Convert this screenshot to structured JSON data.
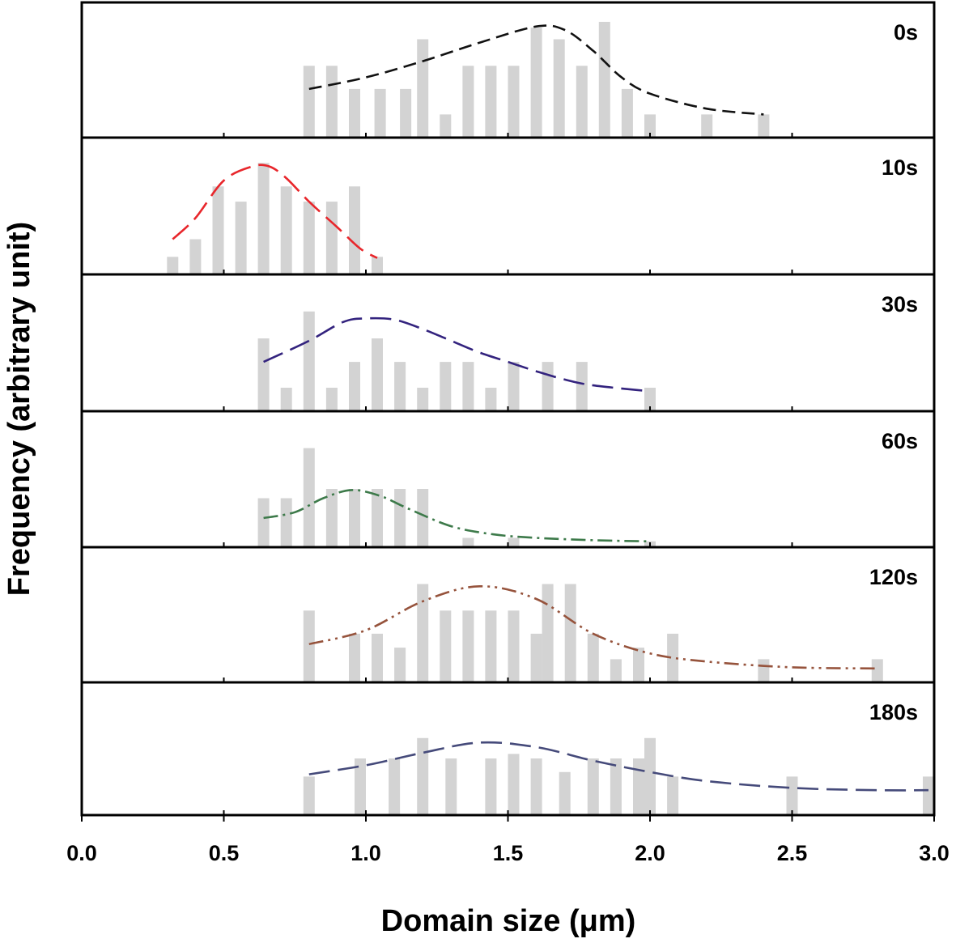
{
  "chart_data": {
    "type": "bar",
    "xlabel": "Domain size (μm)",
    "ylabel": "Frequency (arbitrary unit)",
    "xlim": [
      0.0,
      3.0
    ],
    "x_ticks": [
      "0.0",
      "0.5",
      "1.0",
      "1.5",
      "2.0",
      "2.5",
      "3.0"
    ],
    "bar_color": "#d3d3d3",
    "panels": [
      {
        "label": "0s",
        "ylim": [
          0,
          1
        ],
        "curve_color": "#111111",
        "curve_dash": "dash",
        "bars": [
          {
            "x": 0.8,
            "value": 0.62
          },
          {
            "x": 0.88,
            "value": 0.62
          },
          {
            "x": 0.96,
            "value": 0.42
          },
          {
            "x": 1.05,
            "value": 0.42
          },
          {
            "x": 1.14,
            "value": 0.42
          },
          {
            "x": 1.2,
            "value": 0.85
          },
          {
            "x": 1.28,
            "value": 0.2
          },
          {
            "x": 1.36,
            "value": 0.62
          },
          {
            "x": 1.44,
            "value": 0.62
          },
          {
            "x": 1.52,
            "value": 0.62
          },
          {
            "x": 1.6,
            "value": 0.95
          },
          {
            "x": 1.68,
            "value": 0.85
          },
          {
            "x": 1.76,
            "value": 0.62
          },
          {
            "x": 1.84,
            "value": 1.0
          },
          {
            "x": 1.92,
            "value": 0.42
          },
          {
            "x": 2.0,
            "value": 0.2
          },
          {
            "x": 2.2,
            "value": 0.2
          },
          {
            "x": 2.4,
            "value": 0.2
          }
        ],
        "curve": [
          [
            0.8,
            0.42
          ],
          [
            1.0,
            0.52
          ],
          [
            1.2,
            0.66
          ],
          [
            1.4,
            0.82
          ],
          [
            1.6,
            0.96
          ],
          [
            1.7,
            0.93
          ],
          [
            1.8,
            0.75
          ],
          [
            1.9,
            0.52
          ],
          [
            2.0,
            0.38
          ],
          [
            2.2,
            0.25
          ],
          [
            2.4,
            0.2
          ]
        ]
      },
      {
        "label": "10s",
        "ylim": [
          0,
          1
        ],
        "curve_color": "#e8262b",
        "curve_dash": "longdash",
        "bars": [
          {
            "x": 0.32,
            "value": 0.15
          },
          {
            "x": 0.4,
            "value": 0.3
          },
          {
            "x": 0.48,
            "value": 0.75
          },
          {
            "x": 0.56,
            "value": 0.62
          },
          {
            "x": 0.64,
            "value": 0.95
          },
          {
            "x": 0.72,
            "value": 0.75
          },
          {
            "x": 0.8,
            "value": 0.62
          },
          {
            "x": 0.88,
            "value": 0.62
          },
          {
            "x": 0.96,
            "value": 0.75
          },
          {
            "x": 1.04,
            "value": 0.15
          }
        ],
        "curve": [
          [
            0.32,
            0.3
          ],
          [
            0.4,
            0.48
          ],
          [
            0.5,
            0.8
          ],
          [
            0.6,
            0.92
          ],
          [
            0.66,
            0.92
          ],
          [
            0.72,
            0.82
          ],
          [
            0.8,
            0.62
          ],
          [
            0.9,
            0.4
          ],
          [
            0.98,
            0.22
          ],
          [
            1.04,
            0.14
          ]
        ]
      },
      {
        "label": "30s",
        "ylim": [
          0,
          1
        ],
        "curve_color": "#33237e",
        "curve_dash": "longdash",
        "bars": [
          {
            "x": 0.64,
            "value": 0.62
          },
          {
            "x": 0.72,
            "value": 0.2
          },
          {
            "x": 0.8,
            "value": 0.85
          },
          {
            "x": 0.88,
            "value": 0.2
          },
          {
            "x": 0.96,
            "value": 0.42
          },
          {
            "x": 1.04,
            "value": 0.62
          },
          {
            "x": 1.12,
            "value": 0.42
          },
          {
            "x": 1.2,
            "value": 0.2
          },
          {
            "x": 1.28,
            "value": 0.42
          },
          {
            "x": 1.36,
            "value": 0.42
          },
          {
            "x": 1.44,
            "value": 0.2
          },
          {
            "x": 1.52,
            "value": 0.42
          },
          {
            "x": 1.64,
            "value": 0.42
          },
          {
            "x": 1.76,
            "value": 0.42
          },
          {
            "x": 2.0,
            "value": 0.2
          }
        ],
        "curve": [
          [
            0.64,
            0.42
          ],
          [
            0.8,
            0.6
          ],
          [
            0.92,
            0.76
          ],
          [
            1.0,
            0.79
          ],
          [
            1.1,
            0.78
          ],
          [
            1.2,
            0.7
          ],
          [
            1.3,
            0.6
          ],
          [
            1.4,
            0.5
          ],
          [
            1.5,
            0.42
          ],
          [
            1.6,
            0.34
          ],
          [
            1.7,
            0.27
          ],
          [
            1.8,
            0.22
          ],
          [
            2.0,
            0.17
          ]
        ]
      },
      {
        "label": "60s",
        "ylim": [
          0,
          1
        ],
        "curve_color": "#3d7a4a",
        "curve_dash": "dashdot",
        "bars": [
          {
            "x": 0.64,
            "value": 0.42
          },
          {
            "x": 0.72,
            "value": 0.42
          },
          {
            "x": 0.8,
            "value": 0.85
          },
          {
            "x": 0.88,
            "value": 0.5
          },
          {
            "x": 0.96,
            "value": 0.5
          },
          {
            "x": 1.04,
            "value": 0.5
          },
          {
            "x": 1.12,
            "value": 0.5
          },
          {
            "x": 1.2,
            "value": 0.5
          },
          {
            "x": 1.36,
            "value": 0.08
          },
          {
            "x": 1.52,
            "value": 0.08
          },
          {
            "x": 2.0,
            "value": 0.05
          }
        ],
        "curve": [
          [
            0.64,
            0.25
          ],
          [
            0.75,
            0.3
          ],
          [
            0.85,
            0.42
          ],
          [
            0.95,
            0.49
          ],
          [
            1.05,
            0.44
          ],
          [
            1.15,
            0.33
          ],
          [
            1.3,
            0.18
          ],
          [
            1.45,
            0.11
          ],
          [
            1.6,
            0.08
          ],
          [
            1.8,
            0.06
          ],
          [
            2.0,
            0.05
          ]
        ]
      },
      {
        "label": "120s",
        "ylim": [
          0,
          1
        ],
        "curve_color": "#96533c",
        "curve_dash": "dashdotdot",
        "bars": [
          {
            "x": 0.8,
            "value": 0.62
          },
          {
            "x": 0.96,
            "value": 0.42
          },
          {
            "x": 1.04,
            "value": 0.42
          },
          {
            "x": 1.12,
            "value": 0.3
          },
          {
            "x": 1.2,
            "value": 0.85
          },
          {
            "x": 1.28,
            "value": 0.62
          },
          {
            "x": 1.36,
            "value": 0.62
          },
          {
            "x": 1.44,
            "value": 0.62
          },
          {
            "x": 1.52,
            "value": 0.62
          },
          {
            "x": 1.6,
            "value": 0.42
          },
          {
            "x": 1.64,
            "value": 0.85
          },
          {
            "x": 1.72,
            "value": 0.85
          },
          {
            "x": 1.8,
            "value": 0.42
          },
          {
            "x": 1.88,
            "value": 0.2
          },
          {
            "x": 1.96,
            "value": 0.3
          },
          {
            "x": 2.08,
            "value": 0.42
          },
          {
            "x": 2.4,
            "value": 0.2
          },
          {
            "x": 2.8,
            "value": 0.2
          }
        ],
        "curve": [
          [
            0.8,
            0.33
          ],
          [
            1.0,
            0.45
          ],
          [
            1.2,
            0.7
          ],
          [
            1.4,
            0.83
          ],
          [
            1.6,
            0.72
          ],
          [
            1.8,
            0.42
          ],
          [
            2.0,
            0.25
          ],
          [
            2.2,
            0.18
          ],
          [
            2.5,
            0.13
          ],
          [
            2.8,
            0.12
          ]
        ]
      },
      {
        "label": "180s",
        "ylim": [
          0,
          1
        ],
        "curve_color": "#454a7a",
        "curve_dash": "longdash",
        "bars": [
          {
            "x": 0.8,
            "value": 0.34
          },
          {
            "x": 0.98,
            "value": 0.5
          },
          {
            "x": 1.1,
            "value": 0.5
          },
          {
            "x": 1.2,
            "value": 0.68
          },
          {
            "x": 1.3,
            "value": 0.5
          },
          {
            "x": 1.44,
            "value": 0.5
          },
          {
            "x": 1.52,
            "value": 0.54
          },
          {
            "x": 1.6,
            "value": 0.5
          },
          {
            "x": 1.7,
            "value": 0.38
          },
          {
            "x": 1.8,
            "value": 0.5
          },
          {
            "x": 1.88,
            "value": 0.5
          },
          {
            "x": 1.96,
            "value": 0.5
          },
          {
            "x": 2.0,
            "value": 0.68
          },
          {
            "x": 2.08,
            "value": 0.34
          },
          {
            "x": 2.5,
            "value": 0.34
          },
          {
            "x": 2.98,
            "value": 0.34
          }
        ],
        "curve": [
          [
            0.8,
            0.36
          ],
          [
            1.0,
            0.44
          ],
          [
            1.2,
            0.55
          ],
          [
            1.4,
            0.64
          ],
          [
            1.6,
            0.6
          ],
          [
            1.8,
            0.48
          ],
          [
            2.0,
            0.38
          ],
          [
            2.2,
            0.3
          ],
          [
            2.5,
            0.24
          ],
          [
            2.8,
            0.22
          ],
          [
            2.98,
            0.22
          ]
        ]
      }
    ]
  }
}
